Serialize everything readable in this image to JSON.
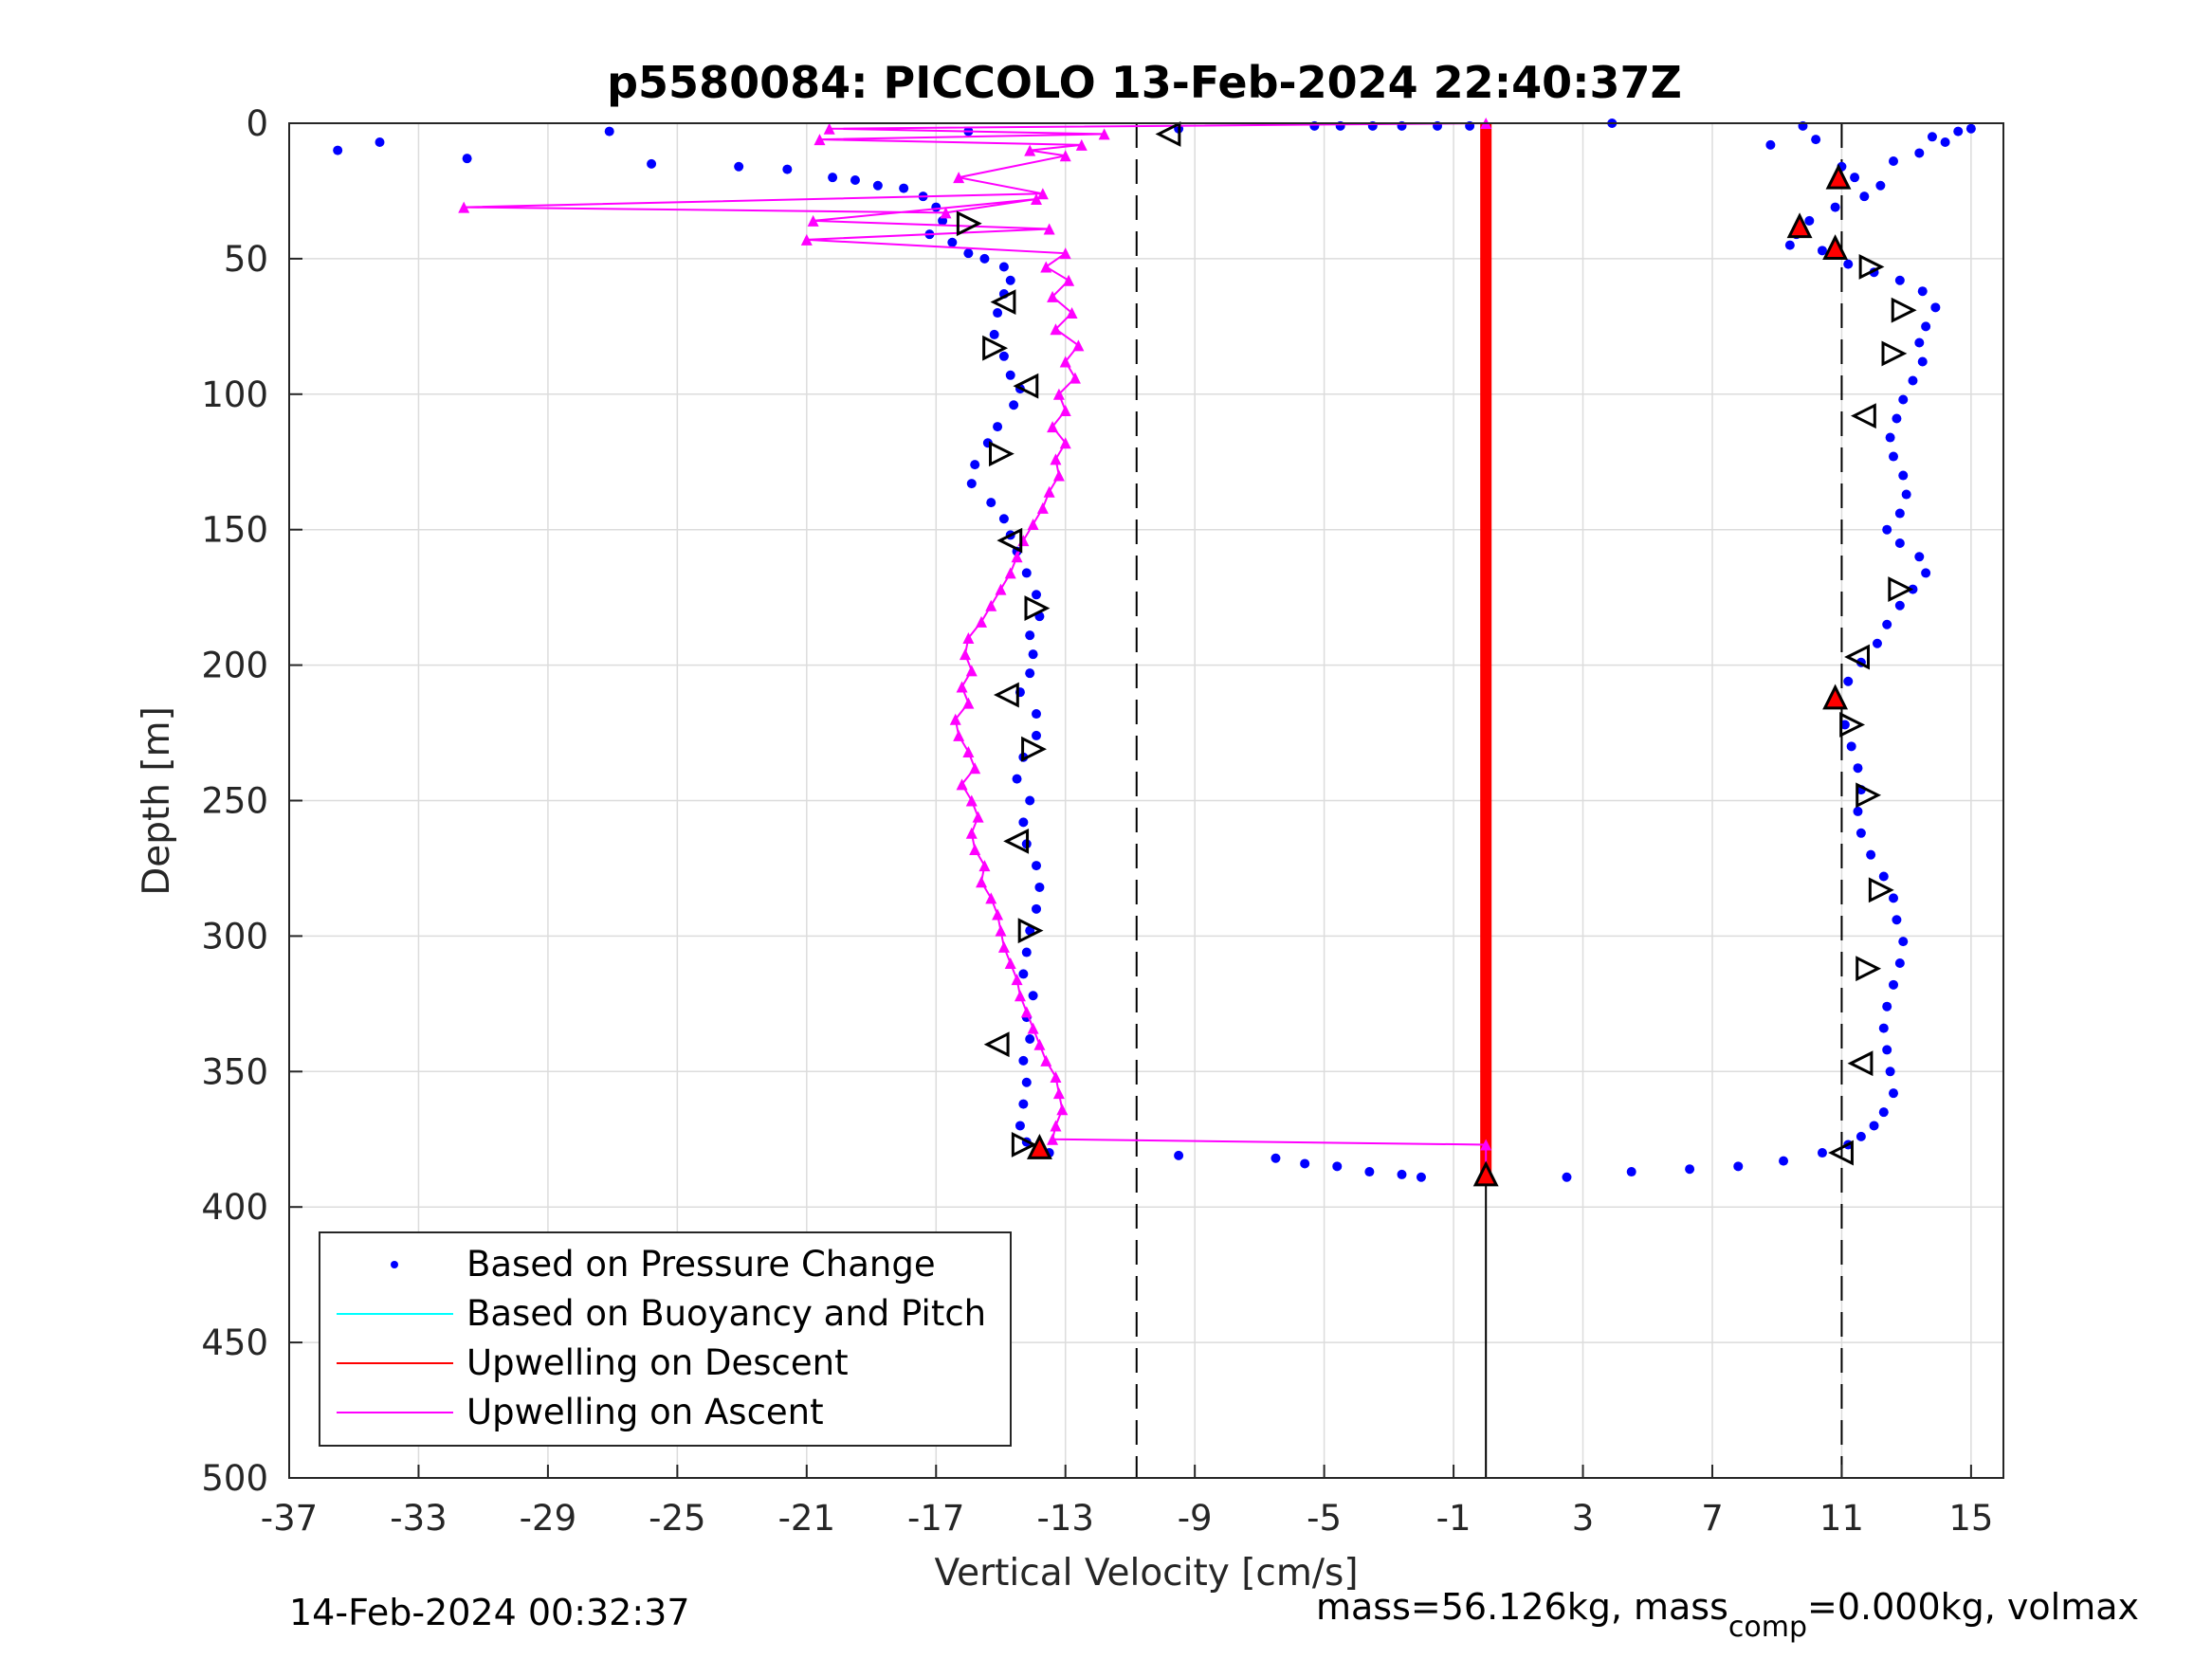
{
  "chart_data": {
    "type": "scatter",
    "title": "p5580084: PICCOLO 13-Feb-2024 22:40:37Z",
    "xlabel": "Vertical Velocity [cm/s]",
    "ylabel": "Depth [m]",
    "xlim": [
      -37,
      16
    ],
    "ylim": [
      0,
      500
    ],
    "y_reversed": true,
    "grid": true,
    "x_ticks": [
      "-37",
      "-33",
      "-29",
      "-25",
      "-21",
      "-17",
      "-13",
      "-9",
      "-5",
      "-1",
      "3",
      "7",
      "11",
      "15"
    ],
    "y_ticks": [
      "0",
      "50",
      "100",
      "150",
      "200",
      "250",
      "300",
      "350",
      "400",
      "450",
      "500"
    ],
    "reference_lines": {
      "dashed_x": [
        -10.8,
        11
      ],
      "solid_x": 0
    },
    "legend_position": "bottom-left",
    "colors": {
      "pressure": "#0000ff",
      "buoyancy": "#00ffff",
      "descent": "#ff0000",
      "ascent": "#ff00ff",
      "grid": "#dcdcdc",
      "axis": "#262626"
    },
    "legend": [
      {
        "label": "Based on Pressure Change",
        "style": "dot",
        "color": "#0000ff"
      },
      {
        "label": "Based on Buoyancy and Pitch",
        "style": "line",
        "color": "#00ffff"
      },
      {
        "label": "Upwelling on Descent",
        "style": "line",
        "color": "#ff0000"
      },
      {
        "label": "Upwelling on Ascent",
        "style": "line",
        "color": "#ff00ff"
      }
    ],
    "series": [
      {
        "name": "Based on Pressure Change",
        "kind": "points",
        "color": "#0000ff",
        "points": [
          [
            -35.5,
            10
          ],
          [
            -34.2,
            7
          ],
          [
            -31.5,
            13
          ],
          [
            -27.1,
            3
          ],
          [
            -25.8,
            15
          ],
          [
            -23.1,
            16
          ],
          [
            -21.6,
            17
          ],
          [
            -20.2,
            20
          ],
          [
            -19.5,
            21
          ],
          [
            -18.8,
            23
          ],
          [
            -18.0,
            24
          ],
          [
            -17.4,
            27
          ],
          [
            -17.0,
            31
          ],
          [
            -16.8,
            36
          ],
          [
            -17.2,
            41
          ],
          [
            -16.5,
            44
          ],
          [
            -16.0,
            48
          ],
          [
            -15.5,
            50
          ],
          [
            -14.9,
            53
          ],
          [
            -14.7,
            58
          ],
          [
            -14.9,
            63
          ],
          [
            -15.1,
            70
          ],
          [
            -15.2,
            78
          ],
          [
            -14.9,
            86
          ],
          [
            -14.7,
            93
          ],
          [
            -14.4,
            98
          ],
          [
            -14.6,
            104
          ],
          [
            -15.1,
            112
          ],
          [
            -15.4,
            118
          ],
          [
            -15.8,
            126
          ],
          [
            -15.9,
            133
          ],
          [
            -15.3,
            140
          ],
          [
            -14.9,
            146
          ],
          [
            -14.7,
            152
          ],
          [
            -14.5,
            158
          ],
          [
            -14.2,
            166
          ],
          [
            -13.9,
            174
          ],
          [
            -13.8,
            182
          ],
          [
            -14.1,
            189
          ],
          [
            -14.0,
            196
          ],
          [
            -14.1,
            203
          ],
          [
            -14.4,
            210
          ],
          [
            -13.9,
            218
          ],
          [
            -13.9,
            226
          ],
          [
            -14.3,
            234
          ],
          [
            -14.5,
            242
          ],
          [
            -14.1,
            250
          ],
          [
            -14.3,
            258
          ],
          [
            -14.2,
            266
          ],
          [
            -13.9,
            274
          ],
          [
            -13.8,
            282
          ],
          [
            -13.9,
            290
          ],
          [
            -14.1,
            298
          ],
          [
            -14.2,
            306
          ],
          [
            -14.3,
            314
          ],
          [
            -14.0,
            322
          ],
          [
            -14.2,
            330
          ],
          [
            -14.1,
            338
          ],
          [
            -14.3,
            346
          ],
          [
            -14.2,
            354
          ],
          [
            -14.3,
            362
          ],
          [
            -14.4,
            370
          ],
          [
            -14.2,
            376
          ],
          [
            -13.5,
            380
          ],
          [
            -9.5,
            381
          ],
          [
            -6.5,
            382
          ],
          [
            -5.6,
            384
          ],
          [
            -4.6,
            385
          ],
          [
            -3.6,
            387
          ],
          [
            -2.6,
            388
          ],
          [
            -2.0,
            389
          ],
          [
            2.5,
            389
          ],
          [
            4.5,
            387
          ],
          [
            6.3,
            386
          ],
          [
            7.8,
            385
          ],
          [
            9.2,
            383
          ],
          [
            10.4,
            380
          ],
          [
            11.2,
            377
          ],
          [
            11.6,
            374
          ],
          [
            12.0,
            370
          ],
          [
            12.3,
            365
          ],
          [
            12.6,
            358
          ],
          [
            12.5,
            350
          ],
          [
            12.4,
            342
          ],
          [
            12.3,
            334
          ],
          [
            12.4,
            326
          ],
          [
            12.6,
            318
          ],
          [
            12.8,
            310
          ],
          [
            12.9,
            302
          ],
          [
            12.7,
            294
          ],
          [
            12.6,
            286
          ],
          [
            12.3,
            278
          ],
          [
            11.9,
            270
          ],
          [
            11.6,
            262
          ],
          [
            11.5,
            254
          ],
          [
            11.6,
            246
          ],
          [
            11.5,
            238
          ],
          [
            11.3,
            230
          ],
          [
            11.1,
            222
          ],
          [
            10.9,
            214
          ],
          [
            11.2,
            206
          ],
          [
            11.6,
            199
          ],
          [
            12.1,
            192
          ],
          [
            12.4,
            185
          ],
          [
            12.8,
            178
          ],
          [
            13.2,
            172
          ],
          [
            13.6,
            166
          ],
          [
            13.4,
            160
          ],
          [
            12.8,
            155
          ],
          [
            12.4,
            150
          ],
          [
            12.8,
            144
          ],
          [
            13.0,
            137
          ],
          [
            12.9,
            130
          ],
          [
            12.6,
            123
          ],
          [
            12.5,
            116
          ],
          [
            12.7,
            109
          ],
          [
            12.9,
            102
          ],
          [
            13.2,
            95
          ],
          [
            13.5,
            88
          ],
          [
            13.4,
            81
          ],
          [
            13.6,
            75
          ],
          [
            13.9,
            68
          ],
          [
            13.5,
            62
          ],
          [
            12.8,
            58
          ],
          [
            12.0,
            55
          ],
          [
            11.2,
            52
          ],
          [
            10.4,
            47
          ],
          [
            9.4,
            45
          ],
          [
            9.6,
            41
          ],
          [
            10.0,
            36
          ],
          [
            10.8,
            31
          ],
          [
            11.7,
            27
          ],
          [
            12.2,
            23
          ],
          [
            11.4,
            20
          ],
          [
            11.0,
            16
          ],
          [
            12.6,
            14
          ],
          [
            13.4,
            11
          ],
          [
            14.2,
            7
          ],
          [
            14.6,
            3
          ],
          [
            15.0,
            2
          ],
          [
            13.8,
            5
          ],
          [
            10.2,
            6
          ],
          [
            8.8,
            8
          ],
          [
            9.8,
            1
          ],
          [
            3.9,
            0
          ],
          [
            -0.5,
            1
          ],
          [
            -1.5,
            1
          ],
          [
            -2.6,
            1
          ],
          [
            -3.5,
            1
          ],
          [
            -4.5,
            1
          ],
          [
            -5.3,
            1
          ],
          [
            -9.5,
            2
          ],
          [
            -16.0,
            3
          ]
        ]
      },
      {
        "name": "Upwelling on Descent",
        "kind": "markers",
        "color": "#ff0000",
        "x": 0.0,
        "depth_range": [
          0,
          390
        ]
      },
      {
        "name": "Upwelling on Ascent",
        "kind": "line_markers",
        "color": "#ff00ff",
        "points": [
          [
            0,
            0
          ],
          [
            -20.3,
            2
          ],
          [
            -11.8,
            4
          ],
          [
            -20.6,
            6
          ],
          [
            -12.5,
            8
          ],
          [
            -14.1,
            10
          ],
          [
            -13.0,
            12
          ],
          [
            -16.3,
            20
          ],
          [
            -13.7,
            26
          ],
          [
            -31.6,
            31
          ],
          [
            -16.7,
            33
          ],
          [
            -13.9,
            28
          ],
          [
            -20.8,
            36
          ],
          [
            -13.5,
            39
          ],
          [
            -21.0,
            43
          ],
          [
            -13.0,
            48
          ],
          [
            -13.6,
            53
          ],
          [
            -12.9,
            58
          ],
          [
            -13.4,
            64
          ],
          [
            -12.8,
            70
          ],
          [
            -13.3,
            76
          ],
          [
            -12.6,
            82
          ],
          [
            -13.0,
            88
          ],
          [
            -12.7,
            94
          ],
          [
            -13.2,
            100
          ],
          [
            -13.0,
            106
          ],
          [
            -13.4,
            112
          ],
          [
            -13.0,
            118
          ],
          [
            -13.3,
            124
          ],
          [
            -13.2,
            130
          ],
          [
            -13.5,
            136
          ],
          [
            -13.7,
            142
          ],
          [
            -14.0,
            148
          ],
          [
            -14.3,
            154
          ],
          [
            -14.5,
            160
          ],
          [
            -14.7,
            166
          ],
          [
            -15.0,
            172
          ],
          [
            -15.3,
            178
          ],
          [
            -15.6,
            184
          ],
          [
            -16.0,
            190
          ],
          [
            -16.1,
            196
          ],
          [
            -15.9,
            202
          ],
          [
            -16.2,
            208
          ],
          [
            -16.0,
            214
          ],
          [
            -16.4,
            220
          ],
          [
            -16.3,
            226
          ],
          [
            -16.0,
            232
          ],
          [
            -15.8,
            238
          ],
          [
            -16.2,
            244
          ],
          [
            -15.9,
            250
          ],
          [
            -15.7,
            256
          ],
          [
            -15.9,
            262
          ],
          [
            -15.8,
            268
          ],
          [
            -15.5,
            274
          ],
          [
            -15.6,
            280
          ],
          [
            -15.3,
            286
          ],
          [
            -15.1,
            292
          ],
          [
            -15.0,
            298
          ],
          [
            -14.9,
            304
          ],
          [
            -14.7,
            310
          ],
          [
            -14.5,
            316
          ],
          [
            -14.4,
            322
          ],
          [
            -14.2,
            328
          ],
          [
            -14.0,
            334
          ],
          [
            -13.8,
            340
          ],
          [
            -13.6,
            346
          ],
          [
            -13.3,
            352
          ],
          [
            -13.2,
            358
          ],
          [
            -13.1,
            364
          ],
          [
            -13.3,
            370
          ],
          [
            -13.4,
            375
          ],
          [
            0,
            377
          ],
          [
            0,
            390
          ]
        ]
      },
      {
        "name": "Ascent flag",
        "kind": "triangles",
        "points": [
          [
            -9.8,
            4,
            "left"
          ],
          [
            -16.0,
            37,
            "right"
          ],
          [
            -14.9,
            66,
            "left"
          ],
          [
            -15.2,
            83,
            "right"
          ],
          [
            -14.2,
            97,
            "left"
          ],
          [
            -15.0,
            122,
            "right"
          ],
          [
            -14.7,
            154,
            "left"
          ],
          [
            -13.9,
            179,
            "right"
          ],
          [
            -14.8,
            211,
            "left"
          ],
          [
            -14.0,
            231,
            "right"
          ],
          [
            -14.5,
            265,
            "left"
          ],
          [
            -14.1,
            298,
            "right"
          ],
          [
            -15.1,
            340,
            "left"
          ],
          [
            -14.3,
            377,
            "right"
          ],
          [
            -13.8,
            378,
            "up"
          ]
        ]
      },
      {
        "name": "Descent flag",
        "kind": "triangles",
        "points": [
          [
            0.0,
            388,
            "up"
          ],
          [
            11.0,
            380,
            "left"
          ],
          [
            11.6,
            347,
            "left"
          ],
          [
            11.8,
            312,
            "right"
          ],
          [
            12.2,
            283,
            "right"
          ],
          [
            11.8,
            248,
            "right"
          ],
          [
            11.3,
            222,
            "right"
          ],
          [
            10.8,
            212,
            "up"
          ],
          [
            11.5,
            197,
            "left"
          ],
          [
            12.8,
            172,
            "right"
          ],
          [
            11.7,
            108,
            "left"
          ],
          [
            12.6,
            85,
            "right"
          ],
          [
            12.9,
            69,
            "right"
          ],
          [
            11.9,
            53,
            "right"
          ],
          [
            10.8,
            46,
            "up"
          ],
          [
            9.7,
            38,
            "up"
          ],
          [
            10.9,
            20,
            "up"
          ]
        ]
      }
    ]
  },
  "footer": {
    "left": "14-Feb-2024 00:32:37",
    "right_main": "mass=56.126kg, mass",
    "right_sub": "comp",
    "right_tail": "=0.000kg, volmax"
  }
}
